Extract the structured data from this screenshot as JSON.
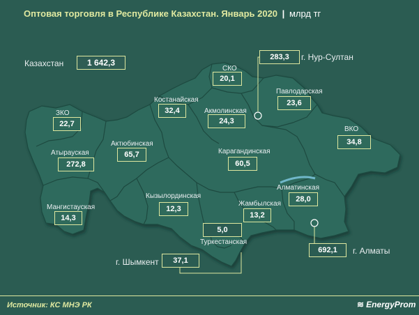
{
  "header": {
    "title": "Оптовая торговля в Республике  Казахстан. Январь 2020",
    "separator": "|",
    "unit": "млрд тг"
  },
  "total": {
    "label": "Казахстан",
    "value": "1 642,3"
  },
  "regions": {
    "sko": {
      "label": "СКО",
      "value": "20,1"
    },
    "nur_sultan": {
      "label": "г. Нур-Султан",
      "value": "283,3"
    },
    "kostanay": {
      "label": "Костанайская",
      "value": "32,4"
    },
    "akmola": {
      "label": "Акмолинская",
      "value": "24,3"
    },
    "pavlodar": {
      "label": "Павлодарская",
      "value": "23,6"
    },
    "zko": {
      "label": "ЗКО",
      "value": "22,7"
    },
    "atyrau": {
      "label": "Атырауская",
      "value": "272,8"
    },
    "aktobe": {
      "label": "Актюбинская",
      "value": "65,7"
    },
    "karaganda": {
      "label": "Карагандинская",
      "value": "60,5"
    },
    "vko": {
      "label": "ВКО",
      "value": "34,8"
    },
    "kyzylorda": {
      "label": "Кызылординская",
      "value": "12,3"
    },
    "almaty_region": {
      "label": "Алматинская",
      "value": "28,0"
    },
    "mangystau": {
      "label": "Мангистауская",
      "value": "14,3"
    },
    "zhambyl": {
      "label": "Жамбылская",
      "value": "13,2"
    },
    "turkestan": {
      "label": "Туркестанская",
      "value": "5,0"
    },
    "almaty_city": {
      "label": "г. Алматы",
      "value": "692,1"
    },
    "shymkent": {
      "label": "г. Шымкент",
      "value": "37,1"
    }
  },
  "footer": {
    "source": "Источник: КС МНЭ РК",
    "brand": "EnergyProm"
  },
  "colors": {
    "background": "#2b5c52",
    "map_fill": "#2f6b5d",
    "accent": "#dfe8a0",
    "text": "#ffffff"
  }
}
